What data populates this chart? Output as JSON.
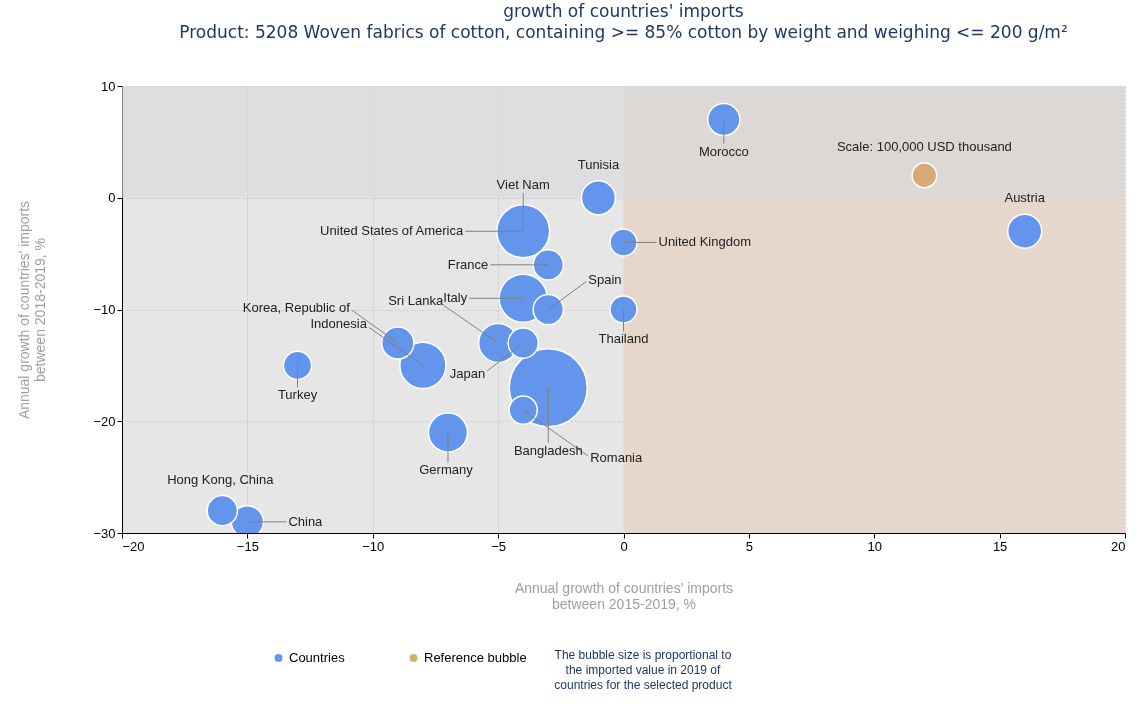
{
  "chart_data": {
    "type": "bubble",
    "title": "growth of countries' imports",
    "subtitle": "Product: 5208 Woven fabrics of cotton, containing >= 85% cotton by weight and weighing <= 200 g/m²",
    "xlabel": "Annual growth of countries' imports\nbetween 2015-2019, %",
    "ylabel": "Annual growth of countries' imports\nbetween 2018-2019, %",
    "xlim": [
      -20,
      20
    ],
    "xticks": [
      -20,
      -15,
      -10,
      -5,
      0,
      5,
      10,
      15,
      20
    ],
    "ylim": [
      -30,
      10
    ],
    "yticks": [
      -30,
      -20,
      -10,
      0,
      10
    ],
    "grid": true,
    "legend": "bottom",
    "bands": [
      {
        "axis": "x",
        "from": 0,
        "to": 20,
        "color": "#e6d6cc"
      },
      {
        "axis": "y",
        "from": 0,
        "to": 10,
        "color": "#d5d8dc"
      }
    ],
    "series": [
      {
        "name": "Countries",
        "color": "#6495ed",
        "x": [
          4,
          -1,
          16,
          0,
          0,
          -4,
          -3,
          -4,
          -3,
          -5,
          -4,
          -9,
          -8,
          -13,
          -7,
          -3,
          -4,
          -16,
          -15
        ],
        "values": [
          7,
          0,
          -3,
          -4,
          -10,
          -3,
          -6,
          -9,
          -10,
          -13,
          -13,
          -13,
          -15,
          -15,
          -21,
          -17,
          -19,
          -28,
          -29
        ],
        "sizes": [
          0.17,
          0.19,
          0.19,
          0.12,
          0.12,
          0.46,
          0.15,
          0.38,
          0.15,
          0.25,
          0.15,
          0.17,
          0.35,
          0.13,
          0.25,
          1,
          0.13,
          0.15,
          0.17
        ]
      },
      {
        "name": "Reference bubble",
        "color": "#d8aa78",
        "x": [
          12
        ],
        "values": [
          2
        ],
        "sizes": [
          0.1
        ]
      }
    ],
    "annotations": [
      {
        "text": "Morocco",
        "x": 4,
        "y": 7
      },
      {
        "text": "Tunisia",
        "x": -1,
        "y": 0
      },
      {
        "text": "Austria",
        "x": 16,
        "y": -3
      },
      {
        "text": "United Kingdom",
        "x": 0,
        "y": -4
      },
      {
        "text": "Thailand",
        "x": 0,
        "y": -10
      },
      {
        "text": "Viet Nam",
        "x": -4,
        "y": -3
      },
      {
        "text": "United States of America",
        "x": -4,
        "y": -3
      },
      {
        "text": "France",
        "x": -3,
        "y": -6
      },
      {
        "text": "Italy",
        "x": -4,
        "y": -9
      },
      {
        "text": "Spain",
        "x": -3,
        "y": -10
      },
      {
        "text": "Sri Lanka",
        "x": -5,
        "y": -13
      },
      {
        "text": "Japan",
        "x": -4,
        "y": -13
      },
      {
        "text": "Korea, Republic of",
        "x": -9,
        "y": -13
      },
      {
        "text": "Indonesia",
        "x": -8,
        "y": -15
      },
      {
        "text": "Turkey",
        "x": -13,
        "y": -15
      },
      {
        "text": "Germany",
        "x": -7,
        "y": -21
      },
      {
        "text": "Bangladesh",
        "x": -3,
        "y": -17
      },
      {
        "text": "Romania",
        "x": -4,
        "y": -19
      },
      {
        "text": "Hong Kong, China",
        "x": -16,
        "y": -28
      },
      {
        "text": "China",
        "x": -15,
        "y": -29
      },
      {
        "text": "Scale: 100,000 USD thousand",
        "x": 12,
        "y": 2
      },
      "The bubble size is proportional to the imported value in 2019 of countries for the selected product"
    ]
  }
}
